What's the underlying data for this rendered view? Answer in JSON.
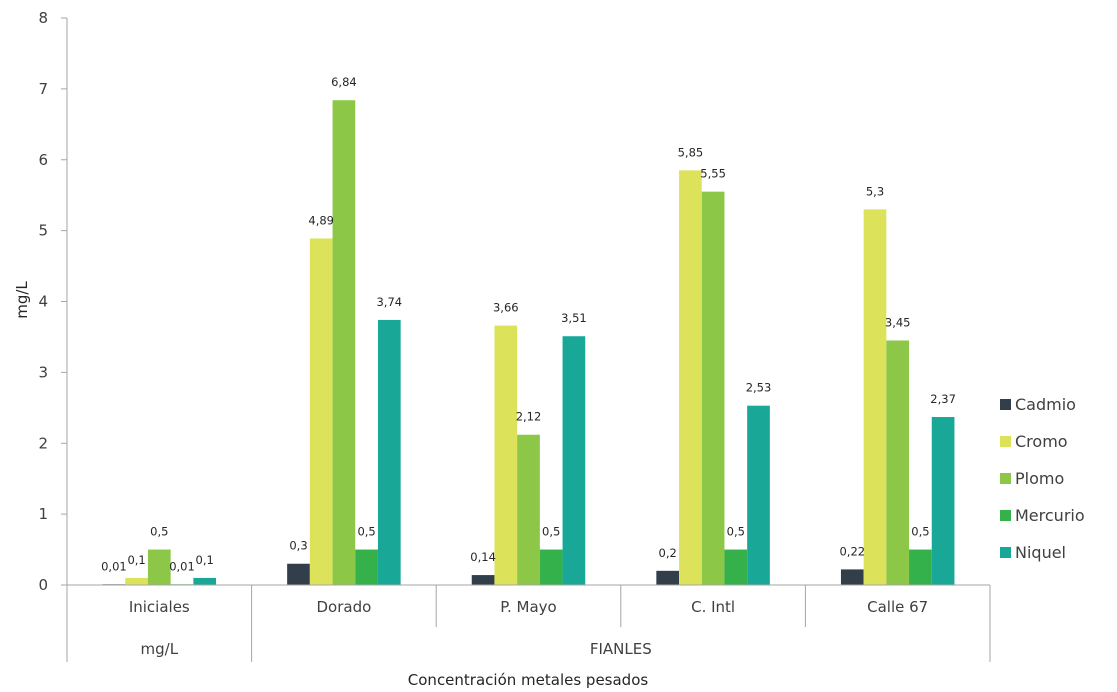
{
  "chart_data": {
    "type": "bar",
    "ylabel": "mg/L",
    "xlabel": "Concentración metales pesados",
    "ylim": [
      0,
      8
    ],
    "yticks": [
      "0",
      "1",
      "2",
      "3",
      "4",
      "5",
      "6",
      "7",
      "8"
    ],
    "categories": [
      "Iniciales",
      "Dorado",
      "P. Mayo",
      "C. Intl",
      "Calle 67"
    ],
    "groups": [
      {
        "label": "mg/L",
        "span": [
          "Iniciales"
        ]
      },
      {
        "label": "FIANLES",
        "span": [
          "Dorado",
          "P. Mayo",
          "C. Intl",
          "Calle 67"
        ]
      }
    ],
    "series": [
      {
        "name": "Cadmio",
        "color": "#323e4a",
        "values": [
          0.01,
          0.3,
          0.14,
          0.2,
          0.22
        ],
        "labels": [
          "0,01",
          "0,3",
          "0,14",
          "0,2",
          "0,22"
        ]
      },
      {
        "name": "Cromo",
        "color": "#dce35a",
        "values": [
          0.1,
          4.89,
          3.66,
          5.85,
          5.3
        ],
        "labels": [
          "0,1",
          "4,89",
          "3,66",
          "5,85",
          "5,3"
        ]
      },
      {
        "name": "Plomo",
        "color": "#8dc748",
        "values": [
          0.5,
          6.84,
          2.12,
          5.55,
          3.45
        ],
        "labels": [
          "0,5",
          "6,84",
          "2,12",
          "5,55",
          "3,45"
        ]
      },
      {
        "name": "Mercurio",
        "color": "#35b14c",
        "values": [
          0.01,
          0.5,
          0.5,
          0.5,
          0.5
        ],
        "labels": [
          "0,01",
          "0,5",
          "0,5",
          "0,5",
          "0,5"
        ]
      },
      {
        "name": "Niquel",
        "color": "#19a898",
        "values": [
          0.1,
          3.74,
          3.51,
          2.53,
          2.37
        ],
        "labels": [
          "0,1",
          "3,74",
          "3,51",
          "2,53",
          "2,37"
        ]
      }
    ],
    "legend": "right",
    "grid": false
  }
}
